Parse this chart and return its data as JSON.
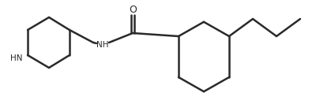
{
  "line_color": "#2a2a2a",
  "bg_color": "#ffffff",
  "text_color": "#2a2a2a",
  "nh_label": "NH",
  "hn_label": "HN",
  "o_label": "O",
  "line_width": 1.8,
  "figsize": [
    4.0,
    1.32
  ],
  "dpi": 100
}
